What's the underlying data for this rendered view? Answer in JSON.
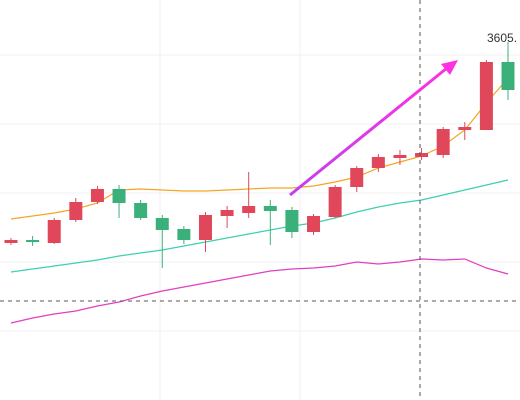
{
  "chart_data": {
    "type": "candlestick",
    "ylim": [
      2710,
      3710
    ],
    "up_color": "#e0475a",
    "down_color": "#3bb07a",
    "open": [
      3102.5,
      3110,
      3102.5,
      3160,
      3205,
      3237.5,
      3202.5,
      3165,
      3137.5,
      3110,
      3170,
      3177.5,
      3195,
      3185,
      3130,
      3167.5,
      3242.5,
      3290,
      3315,
      3317.5,
      3322.5,
      3385,
      3385,
      3555
    ],
    "high": [
      3115,
      3120,
      3165,
      3215,
      3245,
      3247.5,
      3210,
      3172.5,
      3145,
      3180,
      3195,
      3280,
      3210,
      3192.5,
      3175,
      3247.5,
      3295,
      3325,
      3335,
      3340,
      3392.5,
      3405,
      3560,
      3605
    ],
    "low": [
      3097.5,
      3095,
      3100,
      3155,
      3200,
      3165,
      3160,
      3040,
      3100,
      3080,
      3140,
      3165,
      3097.5,
      3115,
      3122.5,
      3165,
      3230,
      3280,
      3297.5,
      3310,
      3315,
      3360,
      3385,
      3460
    ],
    "close": [
      3110,
      3105,
      3160,
      3205,
      3237.5,
      3202.5,
      3165,
      3135,
      3110,
      3172.5,
      3185,
      3195,
      3182.5,
      3130,
      3170,
      3242.5,
      3290,
      3317.5,
      3322.5,
      3327.5,
      3387.5,
      3392.5,
      3555,
      3485
    ],
    "lines": [
      {
        "color": "#f5a623",
        "values": [
          3162.5,
          3170,
          3177.5,
          3187.5,
          3202.5,
          3235,
          3237.5,
          3235,
          3232.5,
          3232.5,
          3235,
          3237.5,
          3240,
          3240,
          3245,
          3255,
          3267.5,
          3290,
          3305,
          3320,
          3345,
          3385,
          3452.5,
          3515
        ]
      },
      {
        "color": "#3fcfb0",
        "values": [
          3030,
          3037.5,
          3045,
          3052.5,
          3060,
          3070,
          3077.5,
          3085,
          3095,
          3105,
          3115,
          3125,
          3135,
          3145,
          3152.5,
          3165,
          3180,
          3192.5,
          3202.5,
          3210,
          3222.5,
          3235,
          3247.5,
          3260
        ]
      },
      {
        "color": "#e040c0",
        "values": [
          2902.5,
          2915,
          2925,
          2932.5,
          2945,
          2955,
          2970,
          2982.5,
          2992.5,
          3002.5,
          3012.5,
          3022.5,
          3032.5,
          3037.5,
          3040,
          3045,
          3055,
          3050,
          3055,
          3062.5,
          3060,
          3062.5,
          3040,
          3025
        ]
      }
    ],
    "high_label": "3605."
  }
}
